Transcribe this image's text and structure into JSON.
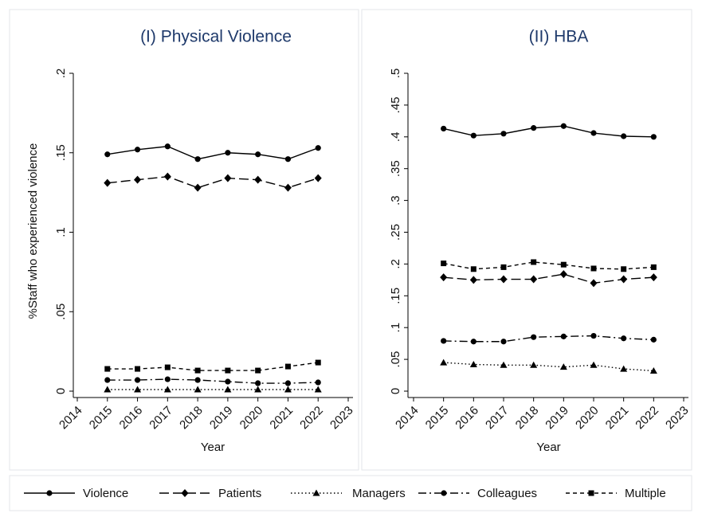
{
  "chart_data": [
    {
      "type": "line",
      "title": "(I) Physical Violence",
      "xlabel": "Year",
      "ylabel": "%Staff who experienced violence",
      "x": [
        2015,
        2016,
        2017,
        2018,
        2019,
        2020,
        2021,
        2022
      ],
      "xlim": [
        2014,
        2023
      ],
      "xticks": [
        2014,
        2015,
        2016,
        2017,
        2018,
        2019,
        2020,
        2021,
        2022,
        2023
      ],
      "ylim": [
        0,
        0.2
      ],
      "yticks": [
        0,
        {
          "value": 0.05,
          "label": ".05"
        },
        {
          "value": 0.1,
          "label": ".1"
        },
        {
          "value": 0.15,
          "label": ".15"
        },
        {
          "value": 0.2,
          "label": ".2"
        }
      ],
      "legend": "bottom",
      "series": [
        {
          "name": "Violence",
          "color": "#000000",
          "dash": "solid",
          "marker": "circle",
          "values": [
            0.149,
            0.152,
            0.154,
            0.146,
            0.15,
            0.149,
            0.146,
            0.153
          ]
        },
        {
          "name": "Patients",
          "color": "#000000",
          "dash": "longdash",
          "marker": "diamond",
          "values": [
            0.131,
            0.133,
            0.135,
            0.128,
            0.134,
            0.133,
            0.128,
            0.134
          ]
        },
        {
          "name": "Managers",
          "color": "#000000",
          "dash": "dot",
          "marker": "triangle",
          "values": [
            0.001,
            0.001,
            0.001,
            0.001,
            0.001,
            0.001,
            0.001,
            0.001
          ]
        },
        {
          "name": "Colleagues",
          "color": "#000000",
          "dash": "dashdot",
          "marker": "circle",
          "values": [
            0.007,
            0.007,
            0.0075,
            0.007,
            0.006,
            0.005,
            0.005,
            0.0055
          ]
        },
        {
          "name": "Multiple",
          "color": "#000000",
          "dash": "shortdash",
          "marker": "square",
          "values": [
            0.014,
            0.014,
            0.015,
            0.013,
            0.013,
            0.013,
            0.0155,
            0.018
          ]
        }
      ]
    },
    {
      "type": "line",
      "title": "(II) HBA",
      "xlabel": "Year",
      "x": [
        2015,
        2016,
        2017,
        2018,
        2019,
        2020,
        2021,
        2022
      ],
      "xlim": [
        2014,
        2023
      ],
      "xticks": [
        2014,
        2015,
        2016,
        2017,
        2018,
        2019,
        2020,
        2021,
        2022,
        2023
      ],
      "ylim": [
        0,
        0.5
      ],
      "yticks": [
        0,
        {
          "value": 0.05,
          "label": ".05"
        },
        {
          "value": 0.1,
          "label": ".1"
        },
        {
          "value": 0.15,
          "label": ".15"
        },
        {
          "value": 0.2,
          "label": ".2"
        },
        {
          "value": 0.25,
          "label": ".25"
        },
        {
          "value": 0.3,
          "label": ".3"
        },
        {
          "value": 0.35,
          "label": ".35"
        },
        {
          "value": 0.4,
          "label": ".4"
        },
        {
          "value": 0.45,
          "label": ".45"
        },
        {
          "value": 0.5,
          "label": ".5"
        }
      ],
      "series": [
        {
          "name": "Violence",
          "color": "#000000",
          "dash": "solid",
          "marker": "circle",
          "values": [
            0.413,
            0.402,
            0.405,
            0.414,
            0.417,
            0.406,
            0.401,
            0.4
          ]
        },
        {
          "name": "Patients",
          "color": "#000000",
          "dash": "longdash",
          "marker": "diamond",
          "values": [
            0.179,
            0.175,
            0.176,
            0.176,
            0.184,
            0.17,
            0.176,
            0.179
          ]
        },
        {
          "name": "Managers",
          "color": "#000000",
          "dash": "dot",
          "marker": "triangle",
          "values": [
            0.045,
            0.042,
            0.041,
            0.041,
            0.038,
            0.041,
            0.035,
            0.032
          ]
        },
        {
          "name": "Colleagues",
          "color": "#000000",
          "dash": "dashdot",
          "marker": "circle",
          "values": [
            0.079,
            0.078,
            0.078,
            0.085,
            0.086,
            0.087,
            0.083,
            0.081
          ]
        },
        {
          "name": "Multiple",
          "color": "#000000",
          "dash": "shortdash",
          "marker": "square",
          "values": [
            0.201,
            0.192,
            0.195,
            0.203,
            0.199,
            0.193,
            0.192,
            0.195
          ]
        }
      ]
    }
  ]
}
